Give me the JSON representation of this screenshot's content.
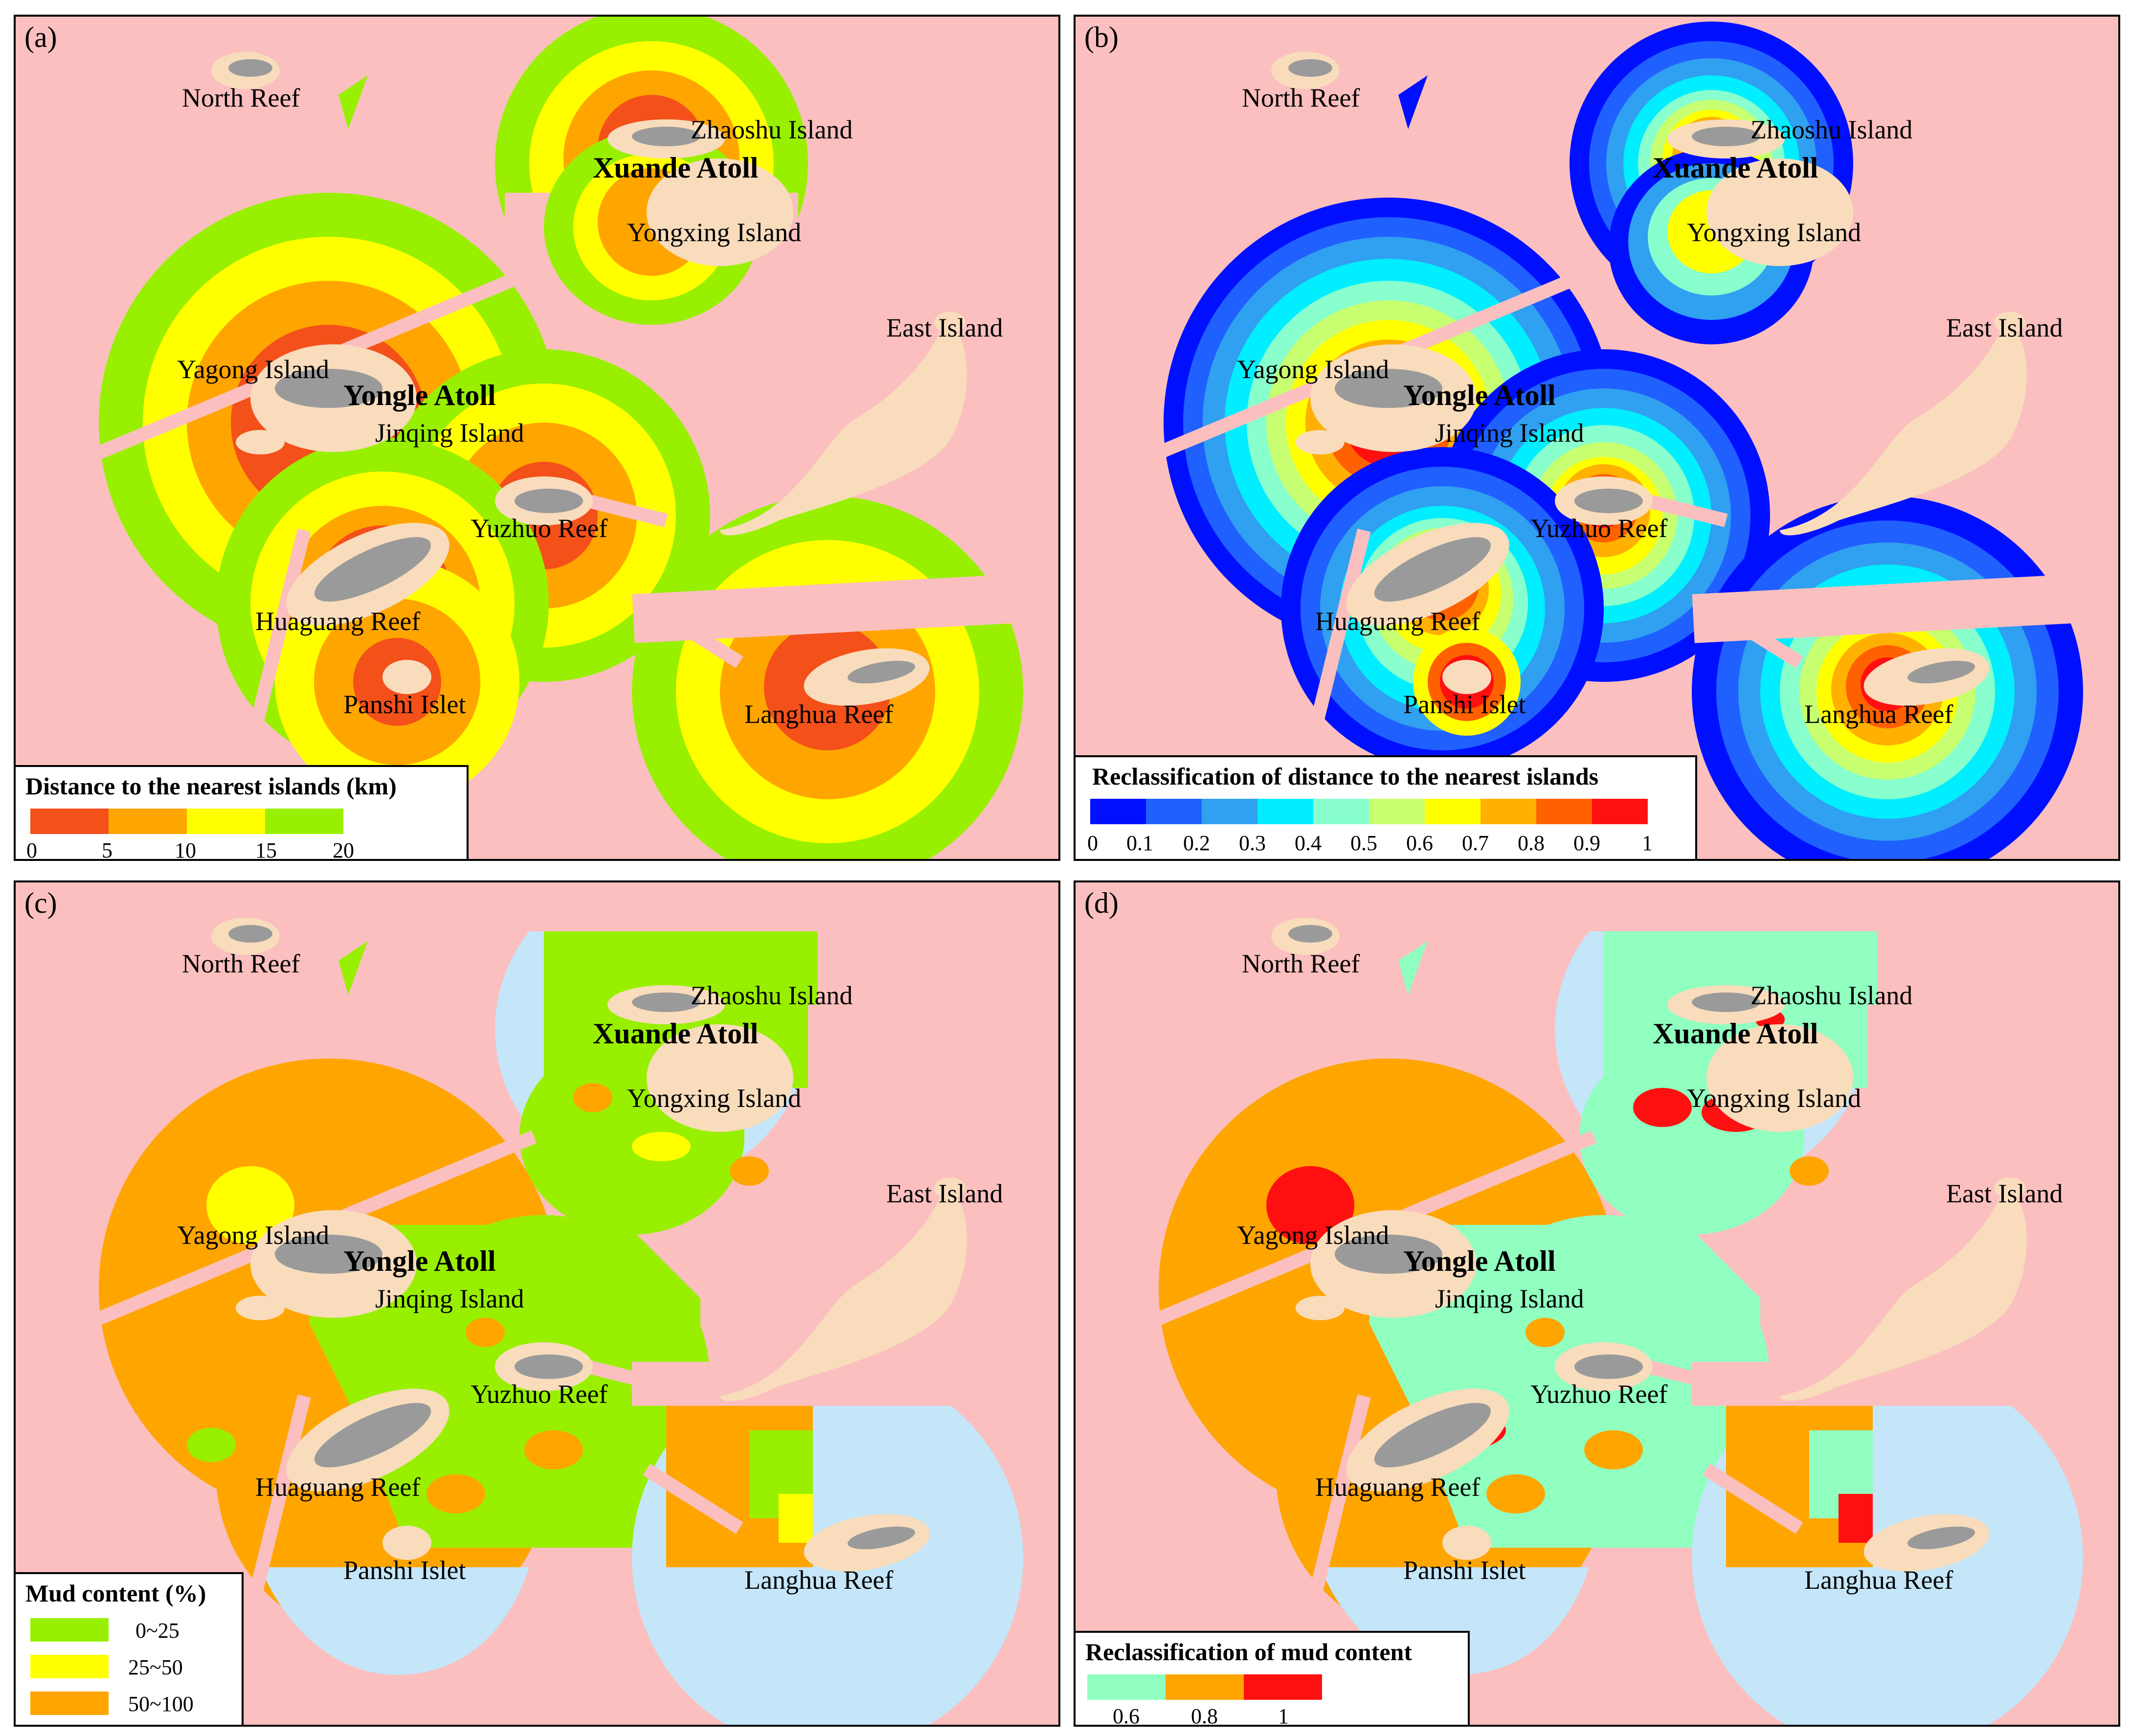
{
  "panels": [
    {
      "id": "a",
      "label": "(a)",
      "legend_title": "Distance to the nearest islands (km)",
      "legend_ticks": [
        "0",
        "5",
        "10",
        "15",
        "20"
      ],
      "legend_colors": [
        "#f4501a",
        "#ffa500",
        "#ffff00",
        "#98f000"
      ]
    },
    {
      "id": "b",
      "label": "(b)",
      "legend_title": "Reclassification of distance to the nearest islands",
      "legend_ticks": [
        "0",
        "0.1",
        "0.2",
        "0.3",
        "0.4",
        "0.5",
        "0.6",
        "0.7",
        "0.8",
        "0.9",
        "1"
      ],
      "legend_colors": [
        "#0010ff",
        "#2060ff",
        "#30a0f0",
        "#00eeff",
        "#88ffcc",
        "#c8ff70",
        "#ffff00",
        "#ffb000",
        "#ff6000",
        "#ff1010"
      ]
    },
    {
      "id": "c",
      "label": "(c)",
      "legend_title": "Mud content (%)",
      "legend_items": [
        "0~25",
        "25~50",
        "50~100"
      ],
      "legend_colors": [
        "#98f000",
        "#ffff00",
        "#ffa500"
      ]
    },
    {
      "id": "d",
      "label": "(d)",
      "legend_title": "Reclassification of mud content",
      "legend_ticks": [
        "0.6",
        "0.8",
        "1"
      ],
      "legend_colors": [
        "#90ffc0",
        "#ffa500",
        "#ff1010"
      ]
    }
  ],
  "places": {
    "north_reef": "North Reef",
    "zhaoshu_island": "Zhaoshu Island",
    "xuande_atoll": "Xuande Atoll",
    "yongxing_island": "Yongxing Island",
    "east_island": "East Island",
    "yagong_island": "Yagong Island",
    "yongle_atoll": "Yongle Atoll",
    "jinqing_island": "Jinqing Island",
    "yuzhuo_reef": "Yuzhuo Reef",
    "huaguang_reef": "Huaguang Reef",
    "panshi_islet": "Panshi Islet",
    "langhua_reef": "Langhua Reef"
  },
  "colors": {
    "sea": "#fbbfbf",
    "land": "#f8dcbc",
    "reef": "#9a9a9a",
    "no_data": "#c4e6f8"
  }
}
